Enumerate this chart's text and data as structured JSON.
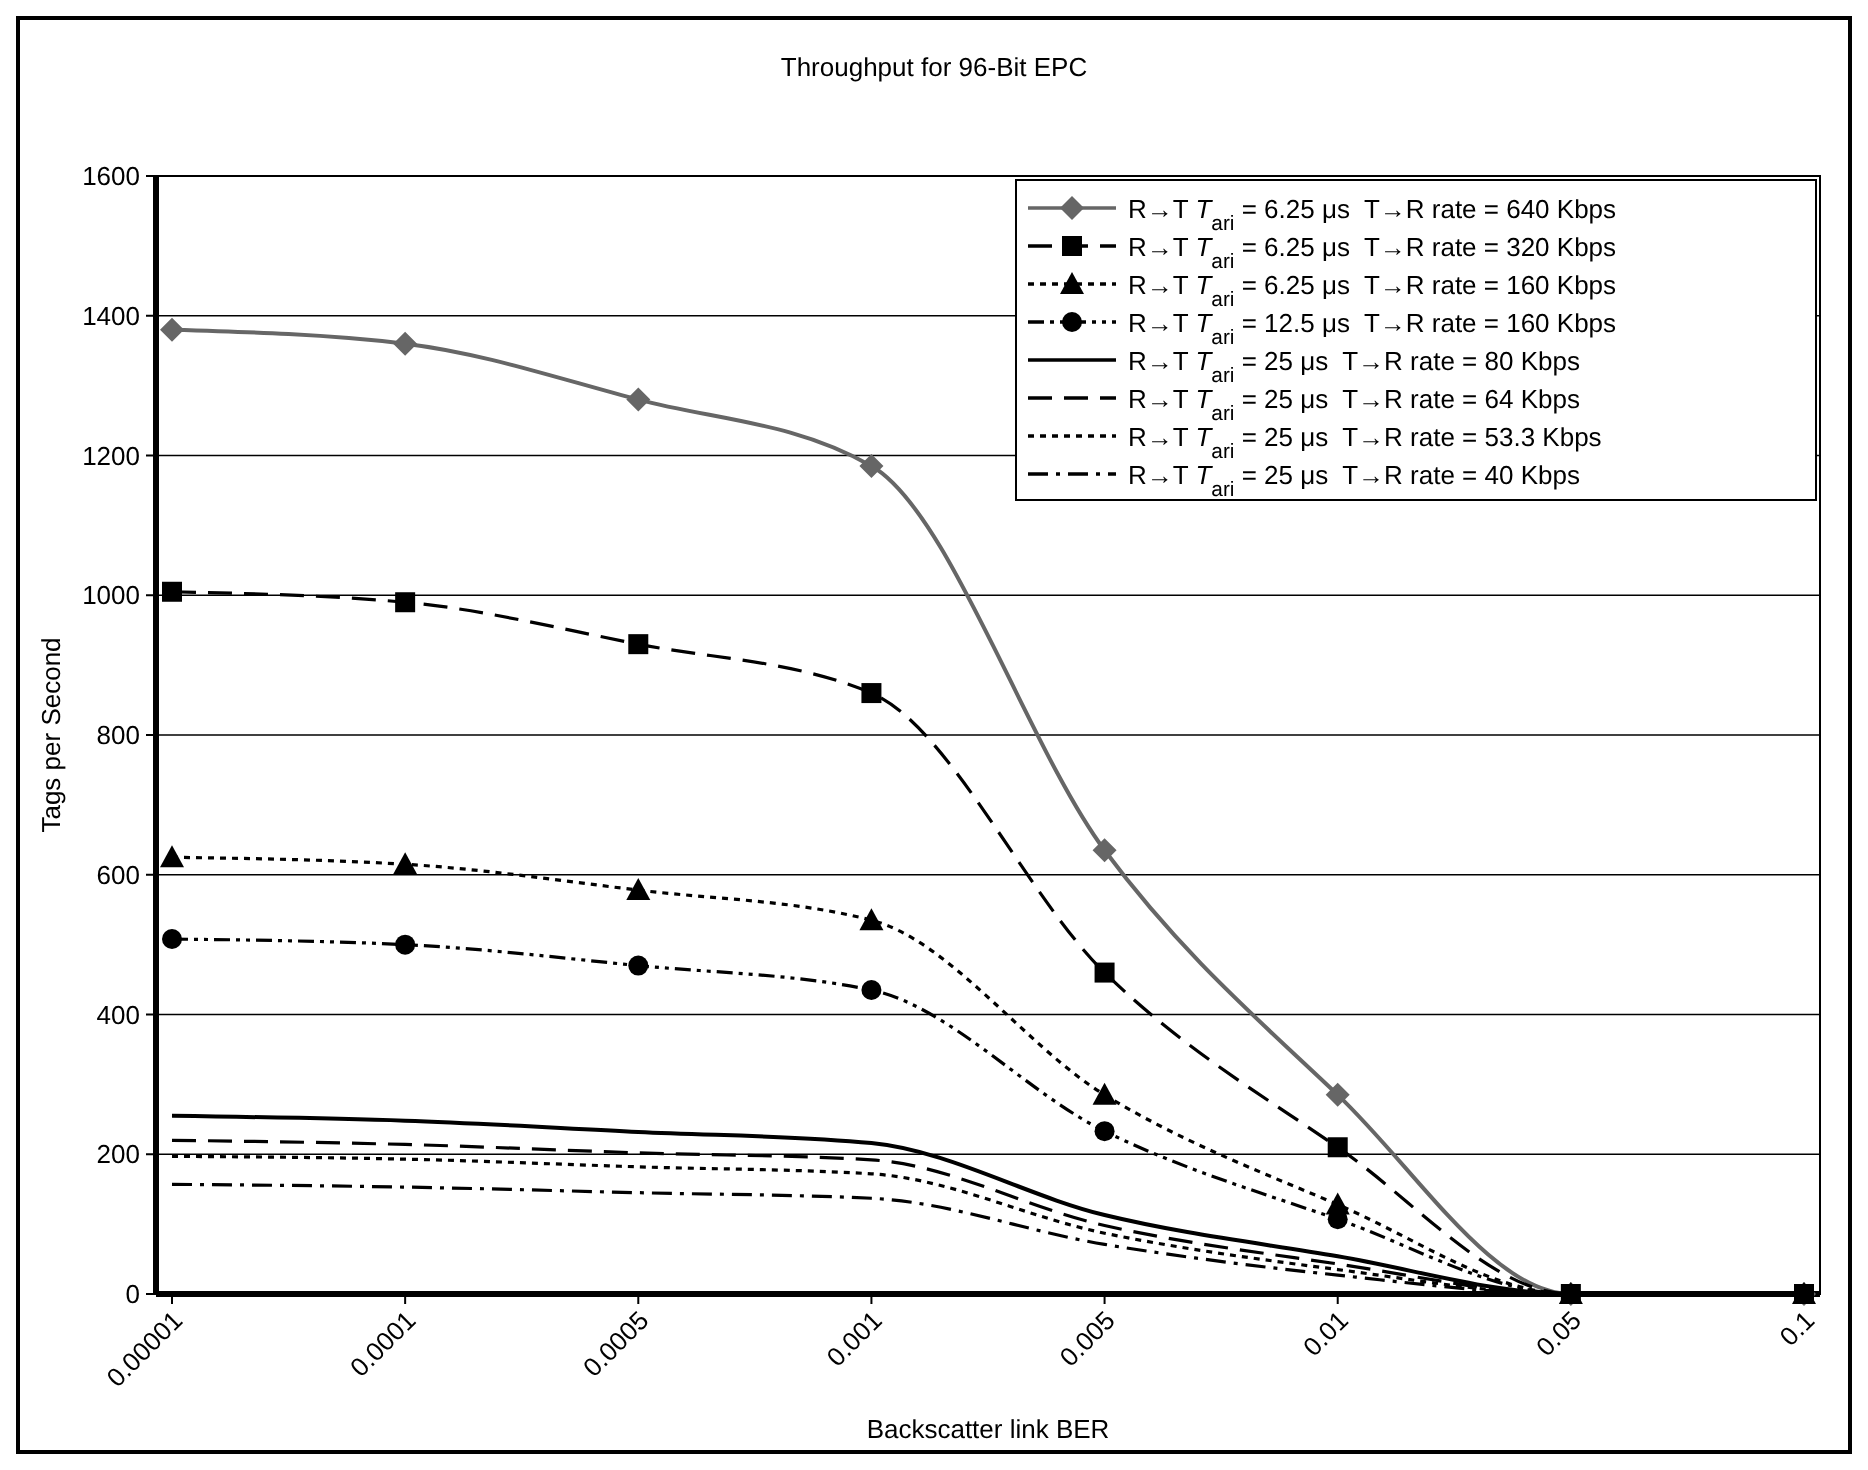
{
  "chart_data": {
    "type": "line",
    "title": "Throughput for 96-Bit EPC",
    "xlabel": "Backscatter link BER",
    "ylabel": "Tags per Second",
    "categories": [
      "0.00001",
      "0.0001",
      "0.0005",
      "0.001",
      "0.005",
      "0.01",
      "0.05",
      "0.1"
    ],
    "ylim": [
      0,
      1600
    ],
    "yticks": [
      0,
      200,
      400,
      600,
      800,
      1000,
      1200,
      1400,
      1600
    ],
    "grid": "y",
    "legend": "top right",
    "series": [
      {
        "name": "R→T T$_{ari}$ = 6.25 μs  T→R rate = 640 Kbps",
        "color": "#666666",
        "marker": "diamond",
        "line_style": "solid",
        "values": [
          1380,
          1360,
          1280,
          1185,
          635,
          285,
          0,
          0
        ]
      },
      {
        "name": "R→T T$_{ari}$ = 6.25 μs  T→R rate = 320 Kbps",
        "color": "#000000",
        "marker": "square",
        "line_style": "longdash",
        "values": [
          1005,
          990,
          930,
          860,
          460,
          210,
          0,
          0
        ]
      },
      {
        "name": "R→T T$_{ari}$ = 6.25 μs  T→R rate = 160 Kbps",
        "color": "#000000",
        "marker": "triangle",
        "line_style": "dotted",
        "values": [
          625,
          615,
          578,
          535,
          285,
          128,
          0,
          0
        ]
      },
      {
        "name": "R→T T$_{ari}$ = 12.5 μs  T→R rate = 160 Kbps",
        "color": "#000000",
        "marker": "circle",
        "line_style": "dashdotdot",
        "values": [
          508,
          500,
          470,
          435,
          233,
          107,
          0,
          0
        ]
      },
      {
        "name": "R→T T$_{ari}$ = 25 μs  T→R rate = 80 Kbps",
        "color": "#000000",
        "marker": "none",
        "line_style": "solid",
        "values": [
          255,
          248,
          232,
          216,
          113,
          54,
          0,
          0
        ]
      },
      {
        "name": "R→T T$_{ari}$ = 25 μs  T→R rate = 64 Kbps",
        "color": "#000000",
        "marker": "none",
        "line_style": "longdash",
        "values": [
          220,
          214,
          202,
          192,
          98,
          43,
          0,
          0
        ]
      },
      {
        "name": "R→T T$_{ari}$ = 25 μs  T→R rate = 53.3 Kbps",
        "color": "#000000",
        "marker": "none",
        "line_style": "dotted",
        "values": [
          197,
          193,
          182,
          172,
          87,
          35,
          0,
          0
        ]
      },
      {
        "name": "R→T T$_{ari}$ = 25 μs  T→R rate = 40 Kbps",
        "color": "#000000",
        "marker": "none",
        "line_style": "dashdot",
        "values": [
          157,
          153,
          145,
          137,
          71,
          27,
          0,
          0
        ]
      }
    ]
  }
}
